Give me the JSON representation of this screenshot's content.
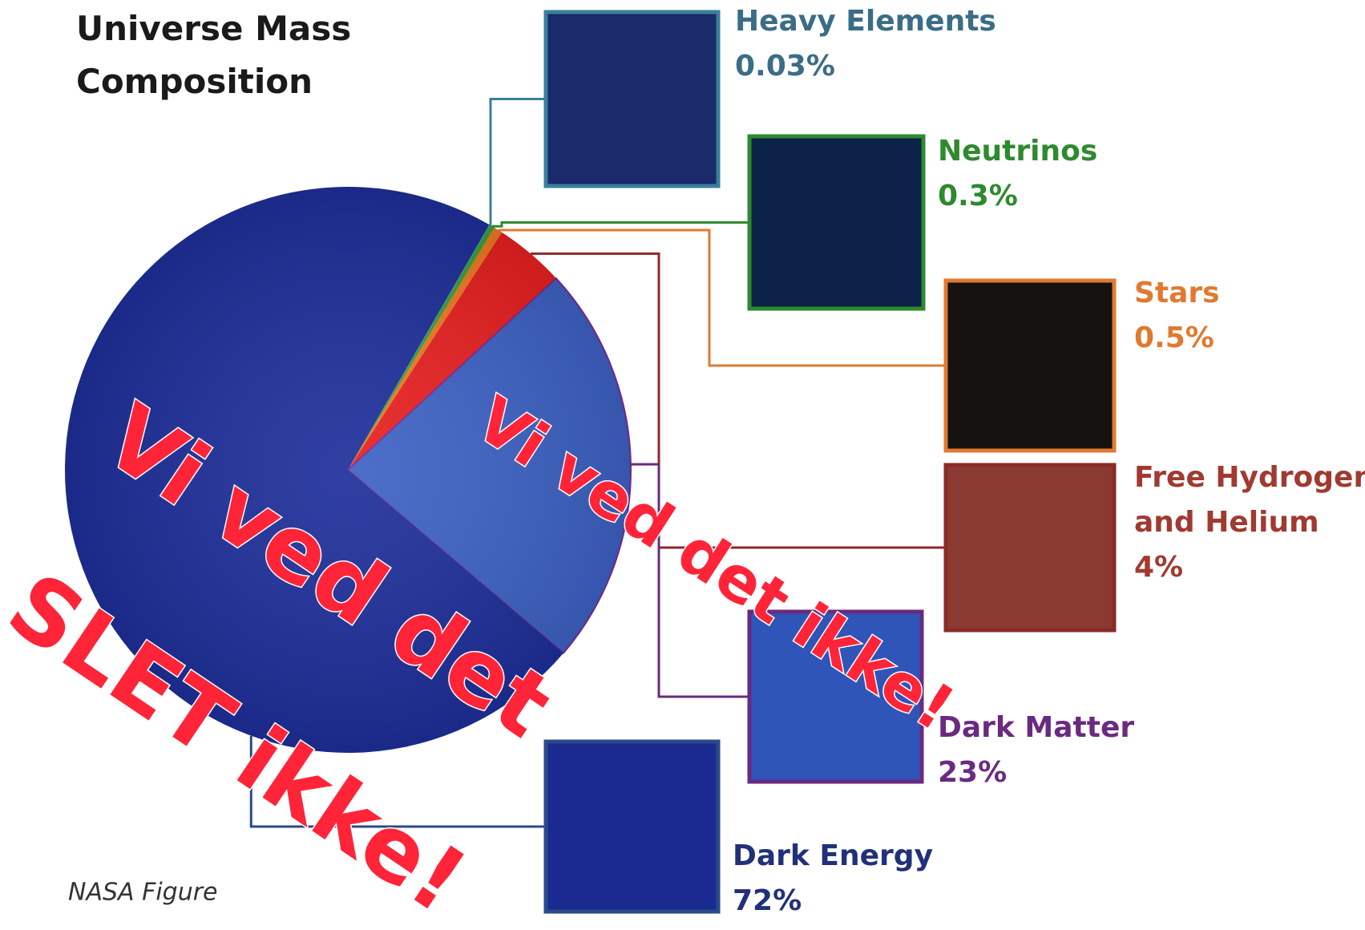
{
  "chart_data": {
    "type": "pie",
    "title": "Universe Mass Composition",
    "categories": [
      "Heavy Elements",
      "Neutrinos",
      "Stars",
      "Free Hydrogen and Helium",
      "Dark Matter",
      "Dark Energy"
    ],
    "values": [
      0.03,
      0.3,
      0.5,
      4,
      23,
      72
    ],
    "value_labels": [
      "0.03%",
      "0.3%",
      "0.5%",
      "4%",
      "23%",
      "72%"
    ],
    "colors": [
      "#3a8fb0",
      "#3aa03a",
      "#f07820",
      "#e82020",
      "#3d62c4",
      "#1e2f9a"
    ],
    "source": "NASA Figure",
    "annotations": [
      "Vi ved det",
      "SLET ikke!",
      "Vi ved det ikke!"
    ]
  }
}
